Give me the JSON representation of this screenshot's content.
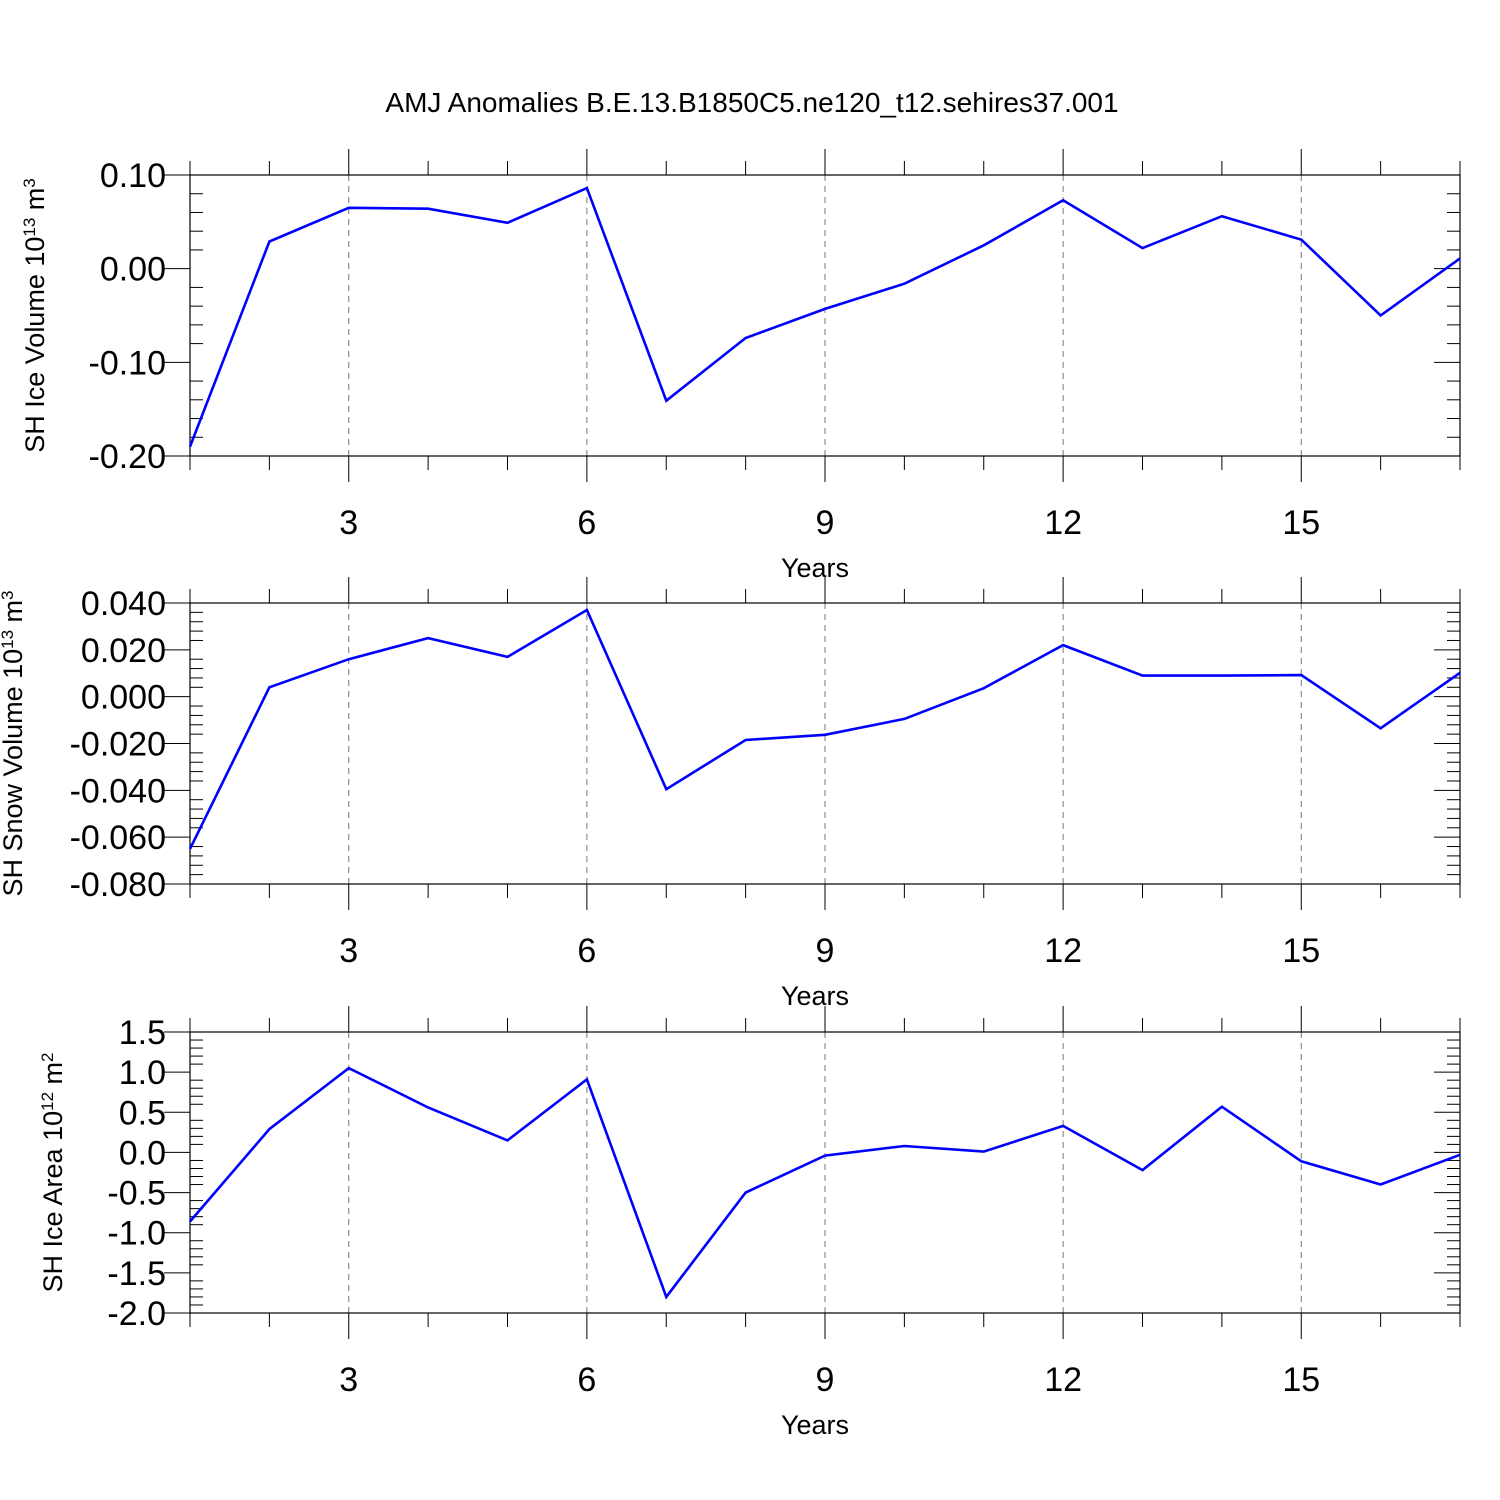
{
  "title": "AMJ Anomalies B.E.13.B1850C5.ne120_t12.sehires37.001",
  "colors": {
    "line": "#0000ff",
    "grid": "#777777",
    "axis": "#000000"
  },
  "chart_data": [
    {
      "type": "line",
      "ylabel_main": "SH Ice Volume 10",
      "ylabel_sup": "13",
      "ylabel_unit": " m",
      "ylabel_unit_sup": "3",
      "xlabel": "Years",
      "xlim": [
        1,
        17
      ],
      "ylim": [
        -0.2,
        0.1
      ],
      "xticks": [
        3,
        6,
        9,
        12,
        15
      ],
      "xtick_labels": [
        "3",
        "6",
        "9",
        "12",
        "15"
      ],
      "yticks": [
        -0.2,
        -0.1,
        0.0,
        0.1
      ],
      "ytick_labels": [
        "-0.20",
        "-0.10",
        "0.00",
        "0.10"
      ],
      "grid_x": true,
      "x": [
        1,
        2,
        3,
        4,
        5,
        6,
        7,
        8,
        9,
        10,
        11,
        12,
        13,
        14,
        15,
        16,
        17
      ],
      "series": [
        {
          "values": [
            -0.19,
            0.029,
            0.065,
            0.064,
            0.049,
            0.086,
            -0.141,
            -0.074,
            -0.043,
            -0.016,
            0.025,
            0.073,
            0.022,
            0.056,
            0.031,
            -0.05,
            0.011
          ]
        }
      ]
    },
    {
      "type": "line",
      "ylabel_main": "SH Snow Volume 10",
      "ylabel_sup": "13",
      "ylabel_unit": " m",
      "ylabel_unit_sup": "3",
      "xlabel": "Years",
      "xlim": [
        1,
        17
      ],
      "ylim": [
        -0.08,
        0.04
      ],
      "xticks": [
        3,
        6,
        9,
        12,
        15
      ],
      "xtick_labels": [
        "3",
        "6",
        "9",
        "12",
        "15"
      ],
      "yticks": [
        -0.08,
        -0.06,
        -0.04,
        -0.02,
        0.0,
        0.02,
        0.04
      ],
      "ytick_labels": [
        "-0.080",
        "-0.060",
        "-0.040",
        "-0.020",
        "0.000",
        "0.020",
        "0.040"
      ],
      "grid_x": true,
      "x": [
        1,
        2,
        3,
        4,
        5,
        6,
        7,
        8,
        9,
        10,
        11,
        12,
        13,
        14,
        15,
        16,
        17
      ],
      "series": [
        {
          "values": [
            -0.065,
            0.004,
            0.016,
            0.025,
            0.017,
            0.037,
            -0.0395,
            -0.0185,
            -0.0163,
            -0.0095,
            0.0036,
            0.022,
            0.009,
            0.009,
            0.0092,
            -0.0135,
            0.0102
          ]
        }
      ]
    },
    {
      "type": "line",
      "ylabel_main": "SH Ice Area 10",
      "ylabel_sup": "12",
      "ylabel_unit": " m",
      "ylabel_unit_sup": "2",
      "xlabel": "Years",
      "xlim": [
        1,
        17
      ],
      "ylim": [
        -2.0,
        1.5
      ],
      "xticks": [
        3,
        6,
        9,
        12,
        15
      ],
      "xtick_labels": [
        "3",
        "6",
        "9",
        "12",
        "15"
      ],
      "yticks": [
        -2.0,
        -1.5,
        -1.0,
        -0.5,
        0.0,
        0.5,
        1.0,
        1.5
      ],
      "ytick_labels": [
        "-2.0",
        "-1.5",
        "-1.0",
        "-0.5",
        "0.0",
        "0.5",
        "1.0",
        "1.5"
      ],
      "grid_x": true,
      "x": [
        1,
        2,
        3,
        4,
        5,
        6,
        7,
        8,
        9,
        10,
        11,
        12,
        13,
        14,
        15,
        16,
        17
      ],
      "series": [
        {
          "values": [
            -0.86,
            0.29,
            1.05,
            0.56,
            0.15,
            0.91,
            -1.8,
            -0.5,
            -0.04,
            0.08,
            0.01,
            0.33,
            -0.22,
            0.57,
            -0.11,
            -0.4,
            -0.03
          ]
        }
      ]
    }
  ]
}
